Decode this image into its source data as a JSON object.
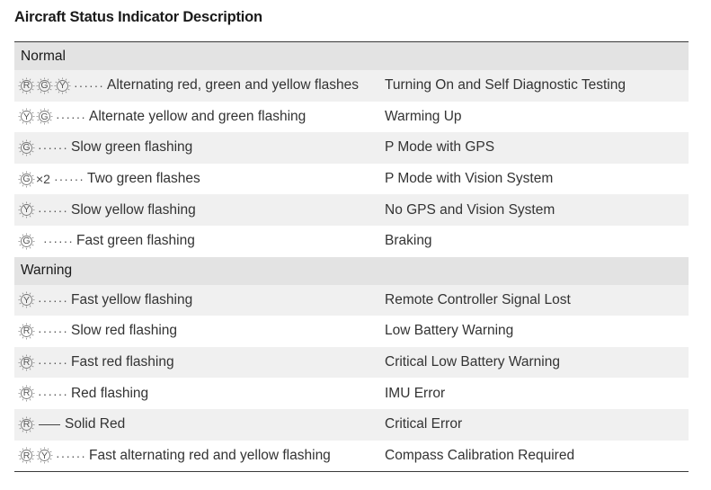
{
  "title": "Aircraft Status Indicator Description",
  "sections": [
    {
      "name": "Normal",
      "rows": [
        {
          "leds": [
            "R",
            "G",
            "Y"
          ],
          "multiplier": "",
          "style": "dots",
          "description": "Alternating red, green and yellow flashes",
          "meaning": "Turning On and Self Diagnostic Testing"
        },
        {
          "leds": [
            "Y",
            "G"
          ],
          "multiplier": "",
          "style": "dots",
          "description": "Alternate yellow and green flashing",
          "meaning": "Warming Up"
        },
        {
          "leds": [
            "G"
          ],
          "multiplier": "",
          "style": "dots",
          "description": "Slow green flashing",
          "meaning": "P Mode with GPS"
        },
        {
          "leds": [
            "G"
          ],
          "multiplier": "×2",
          "style": "dots",
          "description": "Two green flashes",
          "meaning": "P Mode with Vision System"
        },
        {
          "leds": [
            "Y"
          ],
          "multiplier": "",
          "style": "dots",
          "description": "Slow yellow flashing",
          "meaning": "No GPS and Vision System"
        },
        {
          "leds": [
            "G"
          ],
          "multiplier": "",
          "style": "dots-sep",
          "description": "Fast green flashing",
          "meaning": "Braking"
        }
      ]
    },
    {
      "name": "Warning",
      "rows": [
        {
          "leds": [
            "Y"
          ],
          "multiplier": "",
          "style": "dots",
          "description": "Fast yellow flashing",
          "meaning": "Remote Controller Signal Lost"
        },
        {
          "leds": [
            "R"
          ],
          "multiplier": "",
          "style": "dots",
          "description": "Slow red flashing",
          "meaning": "Low Battery Warning"
        },
        {
          "leds": [
            "R"
          ],
          "multiplier": "",
          "style": "dots",
          "description": "Fast red flashing",
          "meaning": "Critical Low Battery Warning"
        },
        {
          "leds": [
            "R"
          ],
          "multiplier": "",
          "style": "dots",
          "description": "Red flashing",
          "meaning": "IMU Error"
        },
        {
          "leds": [
            "R"
          ],
          "multiplier": "",
          "style": "solid",
          "description": "Solid Red",
          "meaning": "Critical Error"
        },
        {
          "leds": [
            "R",
            "Y"
          ],
          "multiplier": "",
          "style": "dots",
          "description": "Fast alternating red and yellow flashing",
          "meaning": "Compass Calibration Required"
        }
      ]
    }
  ],
  "icons": {
    "flash_led": "led-flash-icon"
  },
  "colors": {
    "header_bg": "#e3e3e3",
    "shaded_row_bg": "#f0f0f0",
    "rule": "#3a3a3a"
  }
}
